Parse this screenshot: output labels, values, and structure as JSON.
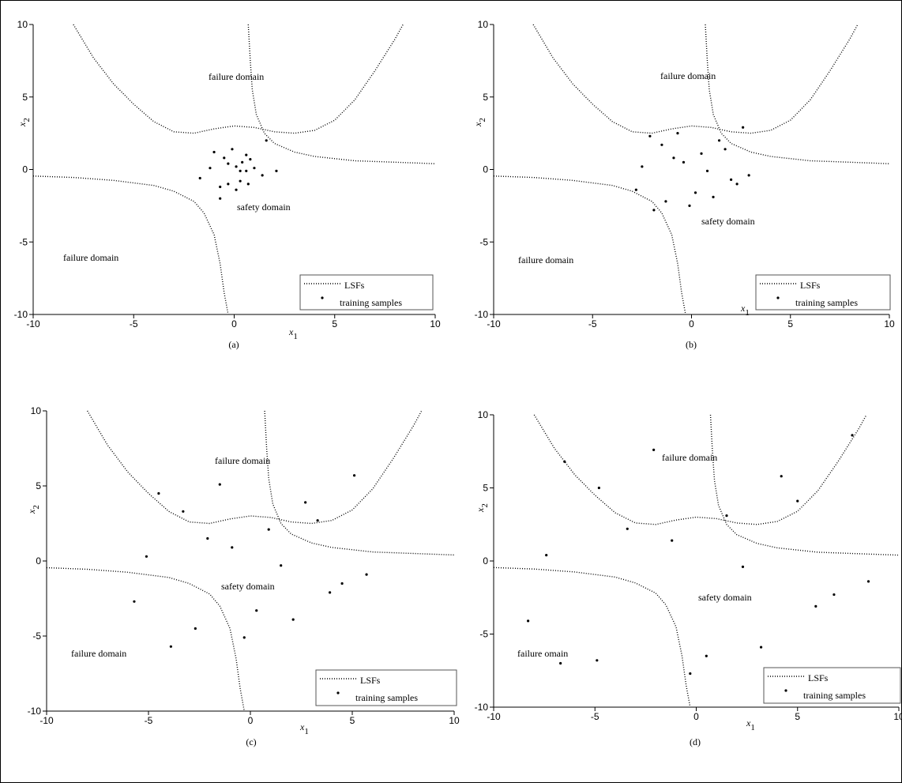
{
  "chart_data": [
    {
      "type": "scatter",
      "caption": "(a)",
      "xlabel": {
        "text": "x",
        "subscript": "1"
      },
      "ylabel": {
        "text": "x",
        "subscript": "2"
      },
      "annotations": [
        "failure domain",
        "safety domain",
        "failure domain"
      ],
      "xlim": [
        -10,
        10
      ],
      "ylim": [
        -10,
        10
      ],
      "xticks": [
        -10,
        -5,
        0,
        5,
        10
      ],
      "yticks": [
        -10,
        -5,
        0,
        5,
        10
      ],
      "series": [
        {
          "name": "LSFs",
          "color": "#000000",
          "line": "dotted",
          "x": [
            -8,
            -7,
            -6,
            -5,
            -4,
            -3,
            -2,
            -1,
            0,
            1,
            2,
            3,
            4,
            5,
            6,
            7,
            8,
            8.4,
            null,
            0.7,
            0.8,
            0.9,
            1.1,
            1.5,
            2,
            3,
            4,
            6,
            8,
            10,
            null,
            -10,
            -8,
            -6,
            -4,
            -3,
            -2,
            -1.5,
            -1,
            -0.7,
            -0.5,
            -0.3
          ],
          "values": [
            10,
            7.7,
            5.9,
            4.5,
            3.3,
            2.6,
            2.5,
            2.8,
            3,
            2.9,
            2.6,
            2.5,
            2.7,
            3.4,
            4.8,
            6.8,
            9,
            10,
            null,
            10,
            7.5,
            5.5,
            3.8,
            2.5,
            1.8,
            1.2,
            0.9,
            0.6,
            0.5,
            0.4,
            null,
            -0.45,
            -0.55,
            -0.75,
            -1.1,
            -1.5,
            -2.2,
            -3,
            -4.5,
            -6.5,
            -8.5,
            -10
          ]
        },
        {
          "name": "training samples",
          "color": "#000000",
          "line": "none",
          "x": [
            -1,
            -0.5,
            -0.1,
            -1.2,
            -0.3,
            0.1,
            0.4,
            0.6,
            0.8,
            1,
            0.3,
            0.6,
            1.4,
            -1.7,
            -0.7,
            -0.3,
            0.3,
            0.7,
            -0.7,
            0.1,
            1.6,
            2.1
          ],
          "values": [
            1.2,
            0.8,
            1.4,
            0.1,
            0.4,
            0.2,
            0.5,
            1,
            0.7,
            0.1,
            -0.1,
            -0.1,
            -0.4,
            -0.6,
            -1.2,
            -1,
            -0.8,
            -1,
            -2,
            -1.4,
            2,
            -0.1
          ]
        }
      ]
    },
    {
      "type": "scatter",
      "caption": "(b)",
      "xlabel": {
        "text": "x",
        "subscript": "1"
      },
      "ylabel": {
        "text": "x",
        "subscript": "2"
      },
      "annotations": [
        "failure domain",
        "safety domain",
        "failure domain"
      ],
      "xlim": [
        -10,
        10
      ],
      "ylim": [
        -10,
        10
      ],
      "xticks": [
        -10,
        -5,
        0,
        5,
        10
      ],
      "yticks": [
        -10,
        -5,
        0,
        5,
        10
      ],
      "series": [
        {
          "name": "LSFs",
          "color": "#000000",
          "line": "dotted",
          "x": [
            -8,
            -7,
            -6,
            -5,
            -4,
            -3,
            -2,
            -1,
            0,
            1,
            2,
            3,
            4,
            5,
            6,
            7,
            8,
            8.4,
            null,
            0.7,
            0.8,
            0.9,
            1.1,
            1.5,
            2,
            3,
            4,
            6,
            8,
            10,
            null,
            -10,
            -8,
            -6,
            -4,
            -3,
            -2,
            -1.5,
            -1,
            -0.7,
            -0.5,
            -0.3
          ],
          "values": [
            10,
            7.7,
            5.9,
            4.5,
            3.3,
            2.6,
            2.5,
            2.8,
            3,
            2.9,
            2.6,
            2.5,
            2.7,
            3.4,
            4.8,
            6.8,
            9,
            10,
            null,
            10,
            7.5,
            5.5,
            3.8,
            2.5,
            1.8,
            1.2,
            0.9,
            0.6,
            0.5,
            0.4,
            null,
            -0.45,
            -0.55,
            -0.75,
            -1.1,
            -1.5,
            -2.2,
            -3,
            -4.5,
            -6.5,
            -8.5,
            -10
          ]
        },
        {
          "name": "training samples",
          "color": "#000000",
          "line": "none",
          "x": [
            -2.1,
            -1.5,
            -0.7,
            -2.5,
            -2.8,
            -0.9,
            -0.4,
            0.5,
            0.8,
            1.4,
            1.7,
            2.6,
            2.9,
            2.3,
            2,
            0.2,
            -0.1,
            1.1,
            -1.3,
            -1.9
          ],
          "values": [
            2.3,
            1.7,
            2.5,
            0.2,
            -1.4,
            0.8,
            0.5,
            1.1,
            -0.1,
            2,
            1.4,
            2.9,
            -0.4,
            -1,
            -0.7,
            -1.6,
            -2.5,
            -1.9,
            -2.2,
            -2.8
          ]
        }
      ]
    },
    {
      "type": "scatter",
      "caption": "(c)",
      "xlabel": {
        "text": "x",
        "subscript": "1"
      },
      "ylabel": {
        "text": "x",
        "subscript": "2"
      },
      "annotations": [
        "failure domain",
        "safety domain",
        "failure domain"
      ],
      "xlim": [
        -10,
        10
      ],
      "ylim": [
        -10,
        10
      ],
      "xticks": [
        -10,
        -5,
        0,
        5,
        10
      ],
      "yticks": [
        -10,
        -5,
        0,
        5,
        10
      ],
      "series": [
        {
          "name": "LSFs",
          "color": "#000000",
          "line": "dotted",
          "x": [
            -8,
            -7,
            -6,
            -5,
            -4,
            -3,
            -2,
            -1,
            0,
            1,
            2,
            3,
            4,
            5,
            6,
            7,
            8,
            8.4,
            null,
            0.7,
            0.8,
            0.9,
            1.1,
            1.5,
            2,
            3,
            4,
            6,
            8,
            10,
            null,
            -10,
            -8,
            -6,
            -4,
            -3,
            -2,
            -1.5,
            -1,
            -0.7,
            -0.5,
            -0.3
          ],
          "values": [
            10,
            7.7,
            5.9,
            4.5,
            3.3,
            2.6,
            2.5,
            2.8,
            3,
            2.9,
            2.6,
            2.5,
            2.7,
            3.4,
            4.8,
            6.8,
            9,
            10,
            null,
            10,
            7.5,
            5.5,
            3.8,
            2.5,
            1.8,
            1.2,
            0.9,
            0.6,
            0.5,
            0.4,
            null,
            -0.45,
            -0.55,
            -0.75,
            -1.1,
            -1.5,
            -2.2,
            -3,
            -4.5,
            -6.5,
            -8.5,
            -10
          ]
        },
        {
          "name": "training samples",
          "color": "#000000",
          "line": "none",
          "x": [
            -4.5,
            -3.3,
            -1.5,
            -5.1,
            -2.1,
            -0.9,
            0.9,
            1.5,
            2.7,
            3.3,
            5.1,
            5.7,
            4.5,
            3.9,
            2.1,
            0.3,
            -0.3,
            -2.7,
            -5.7,
            -3.9
          ],
          "values": [
            4.5,
            3.3,
            5.1,
            0.3,
            1.5,
            0.9,
            2.1,
            -0.3,
            3.9,
            2.7,
            5.7,
            -0.9,
            -1.5,
            -2.1,
            -3.9,
            -3.3,
            -5.1,
            -4.5,
            -2.7,
            -5.7
          ]
        }
      ]
    },
    {
      "type": "scatter",
      "caption": "(d)",
      "xlabel": {
        "text": "x",
        "subscript": "1"
      },
      "ylabel": {
        "text": "x",
        "subscript": "2"
      },
      "annotations": [
        "failure domain",
        "safety domain",
        "failure omain"
      ],
      "xlim": [
        -10,
        10
      ],
      "ylim": [
        -10,
        10
      ],
      "xticks": [
        -10,
        -5,
        0,
        5,
        10
      ],
      "yticks": [
        -10,
        -5,
        0,
        5,
        10
      ],
      "series": [
        {
          "name": "LSFs",
          "color": "#000000",
          "line": "dotted",
          "x": [
            -8,
            -7,
            -6,
            -5,
            -4,
            -3,
            -2,
            -1,
            0,
            1,
            2,
            3,
            4,
            5,
            6,
            7,
            8,
            8.4,
            null,
            0.7,
            0.8,
            0.9,
            1.1,
            1.5,
            2,
            3,
            4,
            6,
            8,
            10,
            null,
            -10,
            -8,
            -6,
            -4,
            -3,
            -2,
            -1.5,
            -1,
            -0.7,
            -0.5,
            -0.3
          ],
          "values": [
            10,
            7.7,
            5.9,
            4.5,
            3.3,
            2.6,
            2.5,
            2.8,
            3,
            2.9,
            2.6,
            2.5,
            2.7,
            3.4,
            4.8,
            6.8,
            9,
            10,
            null,
            10,
            7.5,
            5.5,
            3.8,
            2.5,
            1.8,
            1.2,
            0.9,
            0.6,
            0.5,
            0.4,
            null,
            -0.45,
            -0.55,
            -0.75,
            -1.1,
            -1.5,
            -2.2,
            -3,
            -4.5,
            -6.5,
            -8.5,
            -10
          ]
        },
        {
          "name": "training samples",
          "color": "#000000",
          "line": "none",
          "x": [
            -6.5,
            -4.8,
            -7.4,
            -8.3,
            -4.9,
            -6.7,
            -3.4,
            -2.1,
            -1.2,
            1.5,
            2.3,
            4.2,
            5,
            6.8,
            5.9,
            8.5,
            7.7,
            0.5,
            3.2,
            -0.3
          ],
          "values": [
            6.8,
            5,
            0.4,
            -4.1,
            -6.8,
            -7,
            2.2,
            7.6,
            1.4,
            3.1,
            -0.4,
            5.8,
            4.1,
            -2.3,
            -3.1,
            -1.4,
            8.6,
            -6.5,
            -5.9,
            -7.7
          ]
        }
      ]
    }
  ]
}
